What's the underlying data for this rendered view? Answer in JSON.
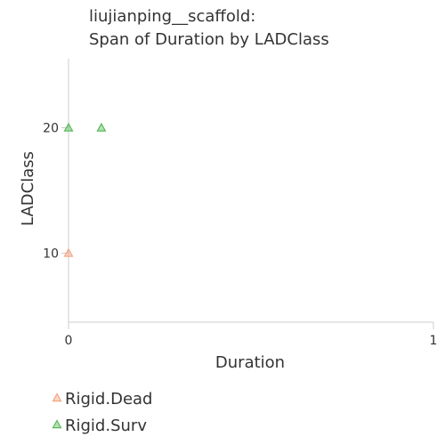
{
  "chart_data": {
    "type": "scatter",
    "title_lines": [
      "liujianping__scaffold:",
      "Span of Duration by LADClass"
    ],
    "xlabel": "Duration",
    "ylabel": "LADClass",
    "xlim": [
      0,
      1
    ],
    "ylim": [
      4.5,
      25.5
    ],
    "x_ticks": [
      "0",
      "1"
    ],
    "y_ticks": [
      "10",
      "20"
    ],
    "grid": false,
    "legend_position": "bottom-left",
    "marker": "triangle",
    "series": [
      {
        "name": "Rigid.Dead",
        "color": "#f4a582",
        "points": [
          {
            "x": 0,
            "y": 10
          }
        ]
      },
      {
        "name": "Rigid.Surv",
        "color": "#5cb85c",
        "points": [
          {
            "x": 0,
            "y": 20
          },
          {
            "x": 0.09,
            "y": 20
          }
        ]
      }
    ]
  }
}
